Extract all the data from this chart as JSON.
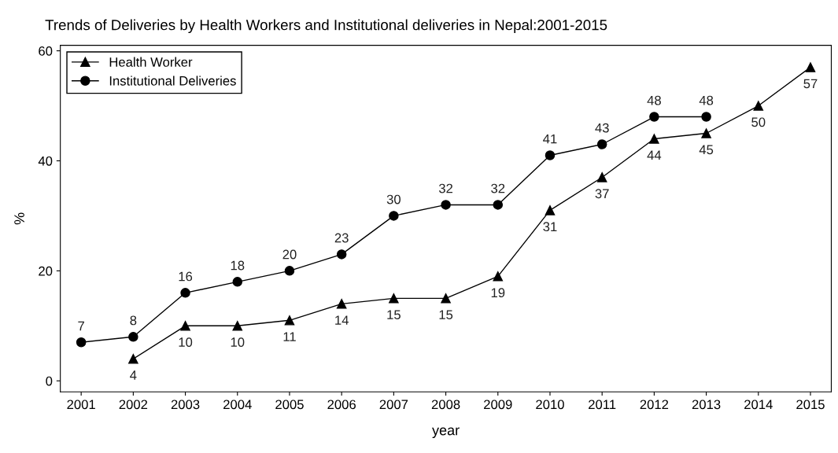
{
  "chart_data": {
    "type": "line",
    "title": "Trends of Deliveries by Health Workers and Institutional deliveries in Nepal:2001-2015",
    "xlabel": "year",
    "ylabel": "%",
    "x": [
      2001,
      2002,
      2003,
      2004,
      2005,
      2006,
      2007,
      2008,
      2009,
      2010,
      2011,
      2012,
      2013,
      2014,
      2015
    ],
    "series": [
      {
        "name": "Health Worker",
        "color": "#000000",
        "marker": "triangle",
        "values": [
          null,
          4,
          10,
          10,
          11,
          14,
          15,
          15,
          19,
          31,
          37,
          44,
          45,
          50,
          57
        ]
      },
      {
        "name": "Institutional Deliveries",
        "color": "#000000",
        "marker": "circle",
        "values": [
          7,
          8,
          16,
          18,
          20,
          23,
          30,
          32,
          32,
          41,
          43,
          48,
          48,
          null,
          null
        ]
      }
    ],
    "xlim": [
      2000.6,
      2015.4
    ],
    "ylim": [
      -2,
      61
    ],
    "xticks": [
      2001,
      2002,
      2003,
      2004,
      2005,
      2006,
      2007,
      2008,
      2009,
      2010,
      2011,
      2012,
      2013,
      2014,
      2015
    ],
    "yticks": [
      0,
      20,
      40,
      60
    ],
    "data_labels": true,
    "grid": false,
    "legend": "top left",
    "line_style": "solid"
  }
}
